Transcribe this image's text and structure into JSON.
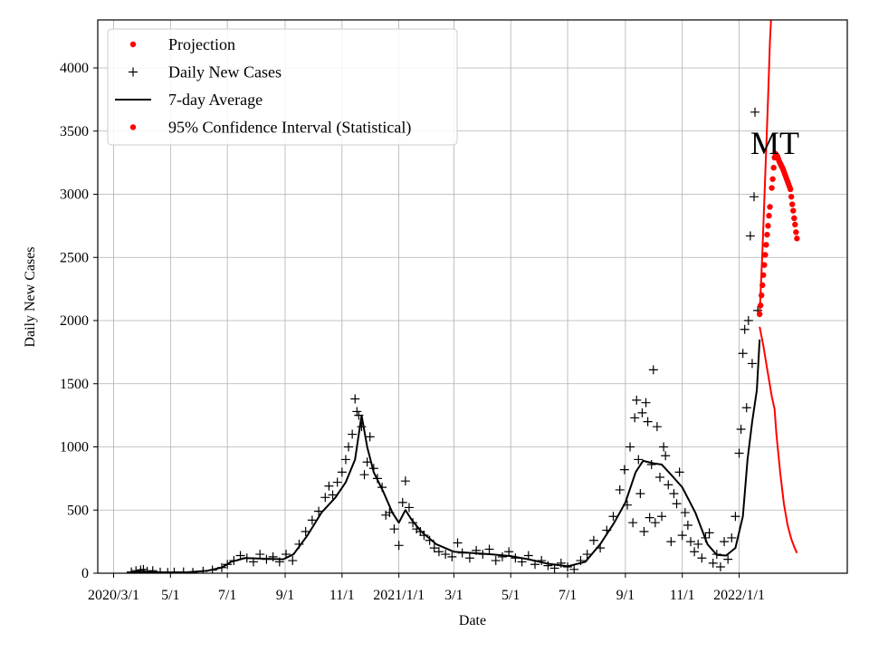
{
  "chart_data": {
    "type": "scatter",
    "title": "",
    "xlabel": "Date",
    "ylabel": "Daily New Cases",
    "annotation": "MT",
    "grid": true,
    "legend_position": "top-left",
    "xlim": [
      "2020-02-13",
      "2022-04-27"
    ],
    "ylim": [
      0,
      4380
    ],
    "x_ticks": [
      {
        "date": "2020-03-01",
        "label": "2020/3/1"
      },
      {
        "date": "2020-05-01",
        "label": "5/1"
      },
      {
        "date": "2020-07-01",
        "label": "7/1"
      },
      {
        "date": "2020-09-01",
        "label": "9/1"
      },
      {
        "date": "2020-11-01",
        "label": "11/1"
      },
      {
        "date": "2021-01-01",
        "label": "2021/1/1"
      },
      {
        "date": "2021-03-01",
        "label": "3/1"
      },
      {
        "date": "2021-05-01",
        "label": "5/1"
      },
      {
        "date": "2021-07-01",
        "label": "7/1"
      },
      {
        "date": "2021-09-01",
        "label": "9/1"
      },
      {
        "date": "2021-11-01",
        "label": "11/1"
      },
      {
        "date": "2022-01-01",
        "label": "2022/1/1"
      }
    ],
    "y_ticks": [
      0,
      500,
      1000,
      1500,
      2000,
      2500,
      3000,
      3500,
      4000
    ],
    "legend": [
      {
        "label": "Projection",
        "marker": "dot",
        "color": "#ff0000"
      },
      {
        "label": "Daily New Cases",
        "marker": "plus",
        "color": "#000000"
      },
      {
        "label": "7-day Average",
        "marker": "line",
        "color": "#000000"
      },
      {
        "label": "95% Confidence Interval (Statistical)",
        "marker": "dot",
        "color": "#ff0000"
      }
    ],
    "series": [
      {
        "name": "7-day Average",
        "style": "line",
        "color": "#000000",
        "points": [
          [
            "2020-03-15",
            5
          ],
          [
            "2020-04-01",
            12
          ],
          [
            "2020-04-15",
            8
          ],
          [
            "2020-05-01",
            6
          ],
          [
            "2020-05-20",
            8
          ],
          [
            "2020-06-10",
            20
          ],
          [
            "2020-06-25",
            45
          ],
          [
            "2020-07-05",
            90
          ],
          [
            "2020-07-20",
            120
          ],
          [
            "2020-08-10",
            115
          ],
          [
            "2020-08-30",
            110
          ],
          [
            "2020-09-10",
            150
          ],
          [
            "2020-09-25",
            300
          ],
          [
            "2020-10-10",
            480
          ],
          [
            "2020-10-25",
            600
          ],
          [
            "2020-11-05",
            720
          ],
          [
            "2020-11-15",
            900
          ],
          [
            "2020-11-22",
            1250
          ],
          [
            "2020-11-28",
            1000
          ],
          [
            "2020-12-05",
            800
          ],
          [
            "2020-12-15",
            650
          ],
          [
            "2020-12-25",
            480
          ],
          [
            "2021-01-01",
            400
          ],
          [
            "2021-01-08",
            500
          ],
          [
            "2021-01-15",
            420
          ],
          [
            "2021-01-25",
            330
          ],
          [
            "2021-02-10",
            230
          ],
          [
            "2021-03-01",
            170
          ],
          [
            "2021-03-20",
            160
          ],
          [
            "2021-04-10",
            150
          ],
          [
            "2021-05-01",
            135
          ],
          [
            "2021-05-20",
            110
          ],
          [
            "2021-06-10",
            75
          ],
          [
            "2021-07-01",
            55
          ],
          [
            "2021-07-20",
            90
          ],
          [
            "2021-08-05",
            230
          ],
          [
            "2021-08-20",
            400
          ],
          [
            "2021-09-01",
            560
          ],
          [
            "2021-09-12",
            800
          ],
          [
            "2021-09-20",
            890
          ],
          [
            "2021-10-01",
            870
          ],
          [
            "2021-10-10",
            860
          ],
          [
            "2021-10-20",
            780
          ],
          [
            "2021-11-01",
            680
          ],
          [
            "2021-11-15",
            480
          ],
          [
            "2021-11-28",
            230
          ],
          [
            "2021-12-08",
            145
          ],
          [
            "2021-12-18",
            140
          ],
          [
            "2021-12-28",
            200
          ],
          [
            "2022-01-05",
            450
          ],
          [
            "2022-01-10",
            900
          ],
          [
            "2022-01-15",
            1200
          ],
          [
            "2022-01-20",
            1450
          ],
          [
            "2022-01-23",
            1850
          ]
        ]
      },
      {
        "name": "Projection",
        "style": "dots",
        "color": "#ff0000",
        "points": [
          [
            "2022-01-23",
            2050
          ],
          [
            "2022-01-24",
            2120
          ],
          [
            "2022-01-25",
            2200
          ],
          [
            "2022-01-26",
            2280
          ],
          [
            "2022-01-27",
            2360
          ],
          [
            "2022-01-28",
            2440
          ],
          [
            "2022-01-29",
            2520
          ],
          [
            "2022-01-30",
            2600
          ],
          [
            "2022-01-31",
            2680
          ],
          [
            "2022-02-01",
            2750
          ],
          [
            "2022-02-02",
            2830
          ],
          [
            "2022-02-03",
            2900
          ],
          [
            "2022-02-05",
            3050
          ],
          [
            "2022-02-06",
            3120
          ],
          [
            "2022-02-07",
            3210
          ],
          [
            "2022-02-08",
            3290
          ],
          [
            "2022-02-09",
            3320
          ],
          [
            "2022-02-10",
            3310
          ],
          [
            "2022-02-11",
            3300
          ],
          [
            "2022-02-12",
            3280
          ],
          [
            "2022-02-13",
            3260
          ],
          [
            "2022-02-14",
            3245
          ],
          [
            "2022-02-15",
            3230
          ],
          [
            "2022-02-16",
            3215
          ],
          [
            "2022-02-17",
            3200
          ],
          [
            "2022-02-18",
            3180
          ],
          [
            "2022-02-19",
            3160
          ],
          [
            "2022-02-20",
            3140
          ],
          [
            "2022-02-21",
            3120
          ],
          [
            "2022-02-22",
            3100
          ],
          [
            "2022-02-23",
            3080
          ],
          [
            "2022-02-24",
            3060
          ],
          [
            "2022-02-25",
            3040
          ],
          [
            "2022-02-26",
            2980
          ],
          [
            "2022-02-27",
            2920
          ],
          [
            "2022-02-28",
            2870
          ],
          [
            "2022-03-01",
            2810
          ],
          [
            "2022-03-02",
            2760
          ],
          [
            "2022-03-03",
            2700
          ],
          [
            "2022-03-04",
            2650
          ]
        ]
      },
      {
        "name": "95% Confidence Interval (Statistical) upper",
        "style": "line",
        "color": "#ff0000",
        "points": [
          [
            "2022-01-23",
            2050
          ],
          [
            "2022-01-26",
            2550
          ],
          [
            "2022-01-29",
            3150
          ],
          [
            "2022-02-01",
            3750
          ],
          [
            "2022-02-03",
            4200
          ],
          [
            "2022-02-05",
            4500
          ]
        ]
      },
      {
        "name": "95% Confidence Interval (Statistical) lower",
        "style": "line",
        "color": "#ff0000",
        "points": [
          [
            "2022-01-23",
            1950
          ],
          [
            "2022-01-27",
            1800
          ],
          [
            "2022-01-31",
            1620
          ],
          [
            "2022-02-05",
            1400
          ],
          [
            "2022-02-08",
            1300
          ],
          [
            "2022-02-10",
            1100
          ],
          [
            "2022-02-14",
            800
          ],
          [
            "2022-02-18",
            550
          ],
          [
            "2022-02-22",
            380
          ],
          [
            "2022-02-26",
            270
          ],
          [
            "2022-03-01",
            210
          ],
          [
            "2022-03-04",
            160
          ]
        ]
      },
      {
        "name": "Daily New Cases",
        "style": "plus",
        "color": "#000000",
        "points": [
          [
            "2020-03-20",
            10
          ],
          [
            "2020-03-25",
            20
          ],
          [
            "2020-03-30",
            25
          ],
          [
            "2020-04-02",
            30
          ],
          [
            "2020-04-06",
            15
          ],
          [
            "2020-04-12",
            20
          ],
          [
            "2020-04-20",
            8
          ],
          [
            "2020-04-28",
            5
          ],
          [
            "2020-05-05",
            8
          ],
          [
            "2020-05-15",
            10
          ],
          [
            "2020-05-25",
            6
          ],
          [
            "2020-06-05",
            15
          ],
          [
            "2020-06-15",
            25
          ],
          [
            "2020-06-25",
            45
          ],
          [
            "2020-07-01",
            70
          ],
          [
            "2020-07-08",
            100
          ],
          [
            "2020-07-15",
            140
          ],
          [
            "2020-07-22",
            120
          ],
          [
            "2020-07-29",
            90
          ],
          [
            "2020-08-05",
            150
          ],
          [
            "2020-08-12",
            110
          ],
          [
            "2020-08-19",
            130
          ],
          [
            "2020-08-26",
            90
          ],
          [
            "2020-09-02",
            150
          ],
          [
            "2020-09-09",
            100
          ],
          [
            "2020-09-16",
            230
          ],
          [
            "2020-09-23",
            330
          ],
          [
            "2020-09-30",
            420
          ],
          [
            "2020-10-07",
            490
          ],
          [
            "2020-10-14",
            600
          ],
          [
            "2020-10-18",
            690
          ],
          [
            "2020-10-22",
            620
          ],
          [
            "2020-10-27",
            720
          ],
          [
            "2020-11-01",
            800
          ],
          [
            "2020-11-05",
            900
          ],
          [
            "2020-11-08",
            1000
          ],
          [
            "2020-11-12",
            1100
          ],
          [
            "2020-11-15",
            1380
          ],
          [
            "2020-11-17",
            1280
          ],
          [
            "2020-11-19",
            1250
          ],
          [
            "2020-11-22",
            1160
          ],
          [
            "2020-11-25",
            780
          ],
          [
            "2020-11-28",
            880
          ],
          [
            "2020-12-01",
            1080
          ],
          [
            "2020-12-05",
            830
          ],
          [
            "2020-12-09",
            750
          ],
          [
            "2020-12-14",
            680
          ],
          [
            "2020-12-18",
            460
          ],
          [
            "2020-12-22",
            480
          ],
          [
            "2020-12-27",
            350
          ],
          [
            "2021-01-01",
            220
          ],
          [
            "2021-01-05",
            560
          ],
          [
            "2021-01-08",
            730
          ],
          [
            "2021-01-12",
            520
          ],
          [
            "2021-01-16",
            400
          ],
          [
            "2021-01-20",
            350
          ],
          [
            "2021-01-24",
            330
          ],
          [
            "2021-01-28",
            300
          ],
          [
            "2021-02-03",
            260
          ],
          [
            "2021-02-08",
            200
          ],
          [
            "2021-02-13",
            170
          ],
          [
            "2021-02-20",
            150
          ],
          [
            "2021-02-27",
            130
          ],
          [
            "2021-03-05",
            240
          ],
          [
            "2021-03-10",
            160
          ],
          [
            "2021-03-18",
            120
          ],
          [
            "2021-03-25",
            180
          ],
          [
            "2021-04-01",
            150
          ],
          [
            "2021-04-08",
            190
          ],
          [
            "2021-04-15",
            100
          ],
          [
            "2021-04-22",
            130
          ],
          [
            "2021-04-29",
            170
          ],
          [
            "2021-05-06",
            120
          ],
          [
            "2021-05-13",
            90
          ],
          [
            "2021-05-20",
            140
          ],
          [
            "2021-05-27",
            70
          ],
          [
            "2021-06-03",
            100
          ],
          [
            "2021-06-10",
            60
          ],
          [
            "2021-06-17",
            40
          ],
          [
            "2021-06-24",
            80
          ],
          [
            "2021-07-01",
            50
          ],
          [
            "2021-07-08",
            30
          ],
          [
            "2021-07-15",
            100
          ],
          [
            "2021-07-22",
            150
          ],
          [
            "2021-07-29",
            260
          ],
          [
            "2021-08-05",
            200
          ],
          [
            "2021-08-12",
            340
          ],
          [
            "2021-08-19",
            450
          ],
          [
            "2021-08-26",
            660
          ],
          [
            "2021-08-31",
            820
          ],
          [
            "2021-09-03",
            540
          ],
          [
            "2021-09-06",
            1000
          ],
          [
            "2021-09-09",
            400
          ],
          [
            "2021-09-11",
            1230
          ],
          [
            "2021-09-13",
            1370
          ],
          [
            "2021-09-15",
            900
          ],
          [
            "2021-09-17",
            630
          ],
          [
            "2021-09-19",
            1270
          ],
          [
            "2021-09-21",
            330
          ],
          [
            "2021-09-23",
            1350
          ],
          [
            "2021-09-25",
            1200
          ],
          [
            "2021-09-27",
            440
          ],
          [
            "2021-09-29",
            860
          ],
          [
            "2021-10-01",
            1610
          ],
          [
            "2021-10-03",
            400
          ],
          [
            "2021-10-05",
            1160
          ],
          [
            "2021-10-08",
            760
          ],
          [
            "2021-10-10",
            450
          ],
          [
            "2021-10-12",
            1000
          ],
          [
            "2021-10-14",
            930
          ],
          [
            "2021-10-17",
            700
          ],
          [
            "2021-10-20",
            250
          ],
          [
            "2021-10-23",
            630
          ],
          [
            "2021-10-26",
            550
          ],
          [
            "2021-10-29",
            800
          ],
          [
            "2021-11-01",
            300
          ],
          [
            "2021-11-04",
            480
          ],
          [
            "2021-11-07",
            380
          ],
          [
            "2021-11-10",
            250
          ],
          [
            "2021-11-14",
            170
          ],
          [
            "2021-11-18",
            230
          ],
          [
            "2021-11-22",
            120
          ],
          [
            "2021-11-26",
            280
          ],
          [
            "2021-11-30",
            320
          ],
          [
            "2021-12-04",
            80
          ],
          [
            "2021-12-08",
            150
          ],
          [
            "2021-12-12",
            50
          ],
          [
            "2021-12-16",
            250
          ],
          [
            "2021-12-20",
            110
          ],
          [
            "2021-12-24",
            280
          ],
          [
            "2021-12-28",
            450
          ],
          [
            "2022-01-01",
            950
          ],
          [
            "2022-01-03",
            1140
          ],
          [
            "2022-01-05",
            1740
          ],
          [
            "2022-01-07",
            1930
          ],
          [
            "2022-01-09",
            1310
          ],
          [
            "2022-01-11",
            2000
          ],
          [
            "2022-01-13",
            2670
          ],
          [
            "2022-01-15",
            1660
          ],
          [
            "2022-01-17",
            2980
          ],
          [
            "2022-01-18",
            3650
          ],
          [
            "2022-01-21",
            2080
          ]
        ]
      }
    ]
  }
}
